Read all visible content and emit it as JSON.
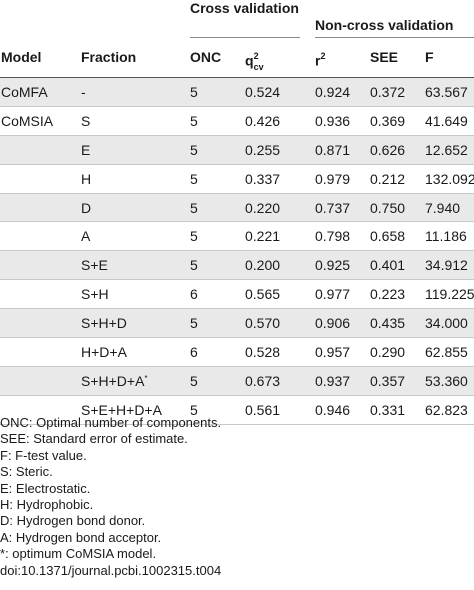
{
  "header": {
    "group_cross": "Cross validation",
    "group_noncross": "Non-cross validation",
    "columns": {
      "model": "Model",
      "fraction": "Fraction",
      "onc": "ONC",
      "q2_base": "q",
      "q2_sup": "2",
      "q2_sub": "cv",
      "r2_base": "r",
      "r2_sup": "2",
      "see": "SEE",
      "f": "F"
    }
  },
  "rows": [
    {
      "model": "CoMFA",
      "fraction": "-",
      "onc": "5",
      "q2": "0.524",
      "r2": "0.924",
      "see": "0.372",
      "f": "63.567",
      "mark": ""
    },
    {
      "model": "CoMSIA",
      "fraction": "S",
      "onc": "5",
      "q2": "0.426",
      "r2": "0.936",
      "see": "0.369",
      "f": "41.649",
      "mark": ""
    },
    {
      "model": "",
      "fraction": "E",
      "onc": "5",
      "q2": "0.255",
      "r2": "0.871",
      "see": "0.626",
      "f": "12.652",
      "mark": ""
    },
    {
      "model": "",
      "fraction": "H",
      "onc": "5",
      "q2": "0.337",
      "r2": "0.979",
      "see": "0.212",
      "f": "132.092",
      "mark": ""
    },
    {
      "model": "",
      "fraction": "D",
      "onc": "5",
      "q2": "0.220",
      "r2": "0.737",
      "see": "0.750",
      "f": "7.940",
      "mark": ""
    },
    {
      "model": "",
      "fraction": "A",
      "onc": "5",
      "q2": "0.221",
      "r2": "0.798",
      "see": "0.658",
      "f": "11.186",
      "mark": ""
    },
    {
      "model": "",
      "fraction": "S+E",
      "onc": "5",
      "q2": "0.200",
      "r2": "0.925",
      "see": "0.401",
      "f": "34.912",
      "mark": ""
    },
    {
      "model": "",
      "fraction": "S+H",
      "onc": "6",
      "q2": "0.565",
      "r2": "0.977",
      "see": "0.223",
      "f": "119.225",
      "mark": ""
    },
    {
      "model": "",
      "fraction": "S+H+D",
      "onc": "5",
      "q2": "0.570",
      "r2": "0.906",
      "see": "0.435",
      "f": "34.000",
      "mark": ""
    },
    {
      "model": "",
      "fraction": "H+D+A",
      "onc": "6",
      "q2": "0.528",
      "r2": "0.957",
      "see": "0.290",
      "f": "62.855",
      "mark": ""
    },
    {
      "model": "",
      "fraction": "S+H+D+A",
      "onc": "5",
      "q2": "0.673",
      "r2": "0.937",
      "see": "0.357",
      "f": "53.360",
      "mark": "*"
    },
    {
      "model": "",
      "fraction": "S+E+H+D+A",
      "onc": "5",
      "q2": "0.561",
      "r2": "0.946",
      "see": "0.331",
      "f": "62.823",
      "mark": ""
    }
  ],
  "notes": [
    {
      "key": "ONC",
      "text": ": Optimal number of components."
    },
    {
      "key": "SEE",
      "text": ": Standard error of estimate."
    },
    {
      "key": "F",
      "text": ": F-test value."
    },
    {
      "key": "S",
      "text": ": Steric."
    },
    {
      "key": "E",
      "text": ": Electrostatic."
    },
    {
      "key": "H",
      "text": ": Hydrophobic."
    },
    {
      "key": "D",
      "text": ": Hydrogen bond donor."
    },
    {
      "key": "A",
      "text": ": Hydrogen bond acceptor."
    },
    {
      "key": "*",
      "text": ": optimum CoMSIA model."
    }
  ],
  "doi": "doi:10.1371/journal.pcbi.1002315.t004"
}
